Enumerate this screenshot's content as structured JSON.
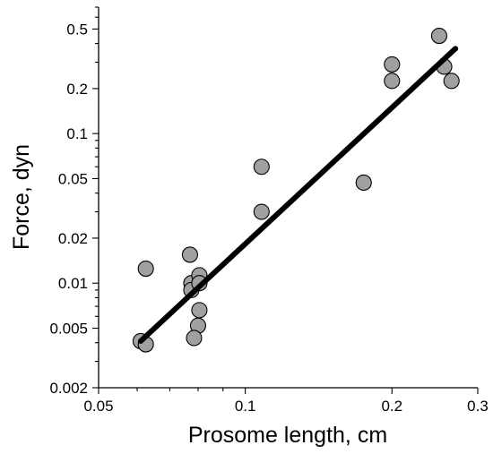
{
  "chart_data": {
    "type": "scatter",
    "xlabel": "Prosome length, cm",
    "ylabel": "Force, dyn",
    "x_scale": "log",
    "y_scale": "log",
    "xlim": [
      0.05,
      0.3
    ],
    "ylim": [
      0.002,
      0.7
    ],
    "x_ticks": [
      {
        "value": 0.05,
        "label": "0.05"
      },
      {
        "value": 0.1,
        "label": "0.1"
      },
      {
        "value": 0.2,
        "label": "0.2"
      },
      {
        "value": 0.3,
        "label": "0.3"
      }
    ],
    "x_minor_ticks": [
      0.06,
      0.07,
      0.08,
      0.09
    ],
    "y_ticks": [
      {
        "value": 0.002,
        "label": "0.002"
      },
      {
        "value": 0.005,
        "label": "0.005"
      },
      {
        "value": 0.01,
        "label": "0.01"
      },
      {
        "value": 0.02,
        "label": "0.02"
      },
      {
        "value": 0.05,
        "label": "0.05"
      },
      {
        "value": 0.1,
        "label": "0.1"
      },
      {
        "value": 0.2,
        "label": "0.2"
      },
      {
        "value": 0.5,
        "label": "0.5"
      }
    ],
    "y_minor_ticks": [
      0.003,
      0.004,
      0.006,
      0.007,
      0.008,
      0.009,
      0.03,
      0.04,
      0.06,
      0.07,
      0.08,
      0.09,
      0.3,
      0.4,
      0.6,
      0.7
    ],
    "grid": false,
    "points": [
      {
        "x": 0.061,
        "y": 0.0041
      },
      {
        "x": 0.0625,
        "y": 0.0039
      },
      {
        "x": 0.0625,
        "y": 0.0125
      },
      {
        "x": 0.077,
        "y": 0.0155
      },
      {
        "x": 0.0775,
        "y": 0.01
      },
      {
        "x": 0.0775,
        "y": 0.009
      },
      {
        "x": 0.0805,
        "y": 0.0113
      },
      {
        "x": 0.0805,
        "y": 0.01
      },
      {
        "x": 0.0805,
        "y": 0.0066
      },
      {
        "x": 0.08,
        "y": 0.0052
      },
      {
        "x": 0.0785,
        "y": 0.0043
      },
      {
        "x": 0.108,
        "y": 0.06
      },
      {
        "x": 0.108,
        "y": 0.03
      },
      {
        "x": 0.175,
        "y": 0.047
      },
      {
        "x": 0.2,
        "y": 0.29
      },
      {
        "x": 0.2,
        "y": 0.225
      },
      {
        "x": 0.25,
        "y": 0.45
      },
      {
        "x": 0.256,
        "y": 0.28
      },
      {
        "x": 0.265,
        "y": 0.225
      }
    ],
    "fit_line": {
      "x": [
        0.061,
        0.27
      ],
      "y": [
        0.0041,
        0.37
      ]
    },
    "colors": {
      "marker_fill": "#a0a0a0",
      "marker_edge": "#000000",
      "fit_line": "#000000"
    }
  }
}
